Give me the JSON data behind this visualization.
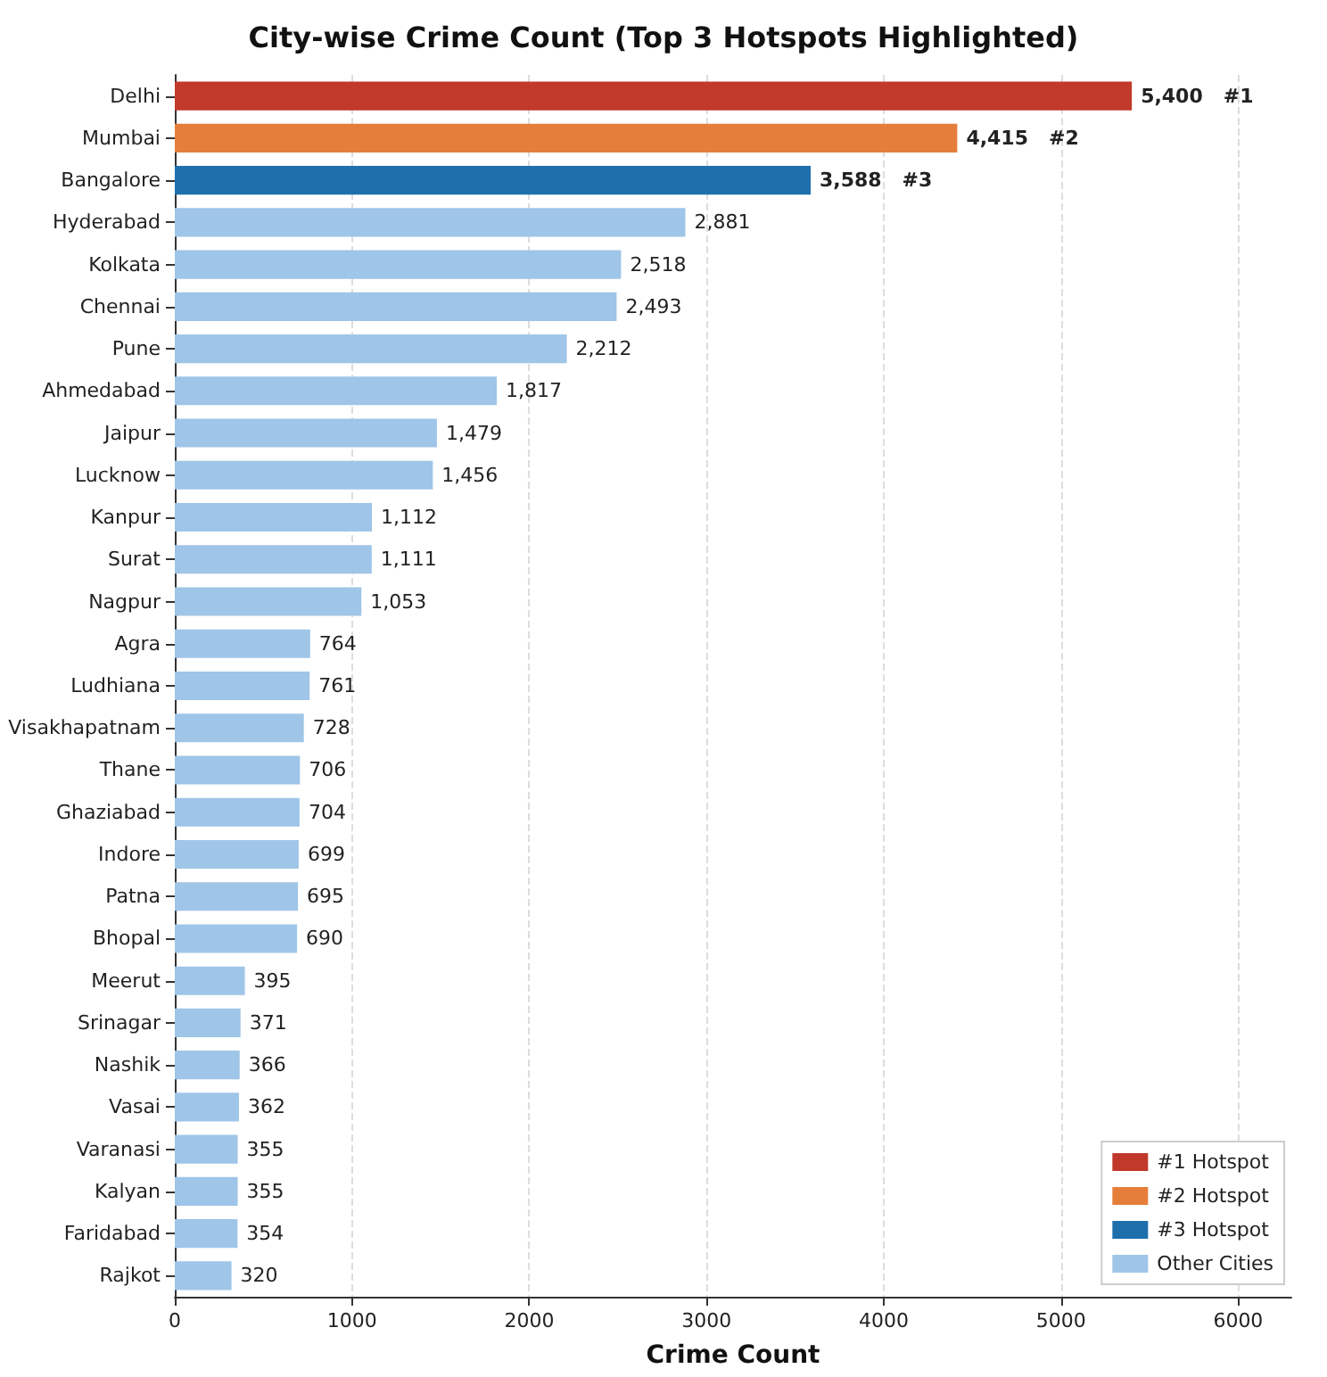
{
  "chart_data": {
    "type": "bar",
    "orientation": "horizontal",
    "stacked": true,
    "title": "City-wise Crime Count (Top 3 Hotspots Highlighted)",
    "xlabel": "Crime Count",
    "categories": [
      "Delhi",
      "Mumbai",
      "Bangalore",
      "Hyderabad",
      "Kolkata",
      "Chennai",
      "Pune",
      "Ahmedabad",
      "Jaipur",
      "Lucknow",
      "Kanpur",
      "Surat",
      "Nagpur",
      "Agra",
      "Ludhiana",
      "Visakhapatnam",
      "Thane",
      "Ghaziabad",
      "Indore",
      "Patna",
      "Bhopal",
      "Meerut",
      "Srinagar",
      "Nashik",
      "Vasai",
      "Varanasi",
      "Kalyan",
      "Faridabad",
      "Rajkot"
    ],
    "series": [
      {
        "name": "#1 Hotspot",
        "color": "#c0392b",
        "values": [
          5400,
          null,
          null,
          null,
          null,
          null,
          null,
          null,
          null,
          null,
          null,
          null,
          null,
          null,
          null,
          null,
          null,
          null,
          null,
          null,
          null,
          null,
          null,
          null,
          null,
          null,
          null,
          null,
          null
        ],
        "value_labels": [
          "5,400   #1",
          null,
          null,
          null,
          null,
          null,
          null,
          null,
          null,
          null,
          null,
          null,
          null,
          null,
          null,
          null,
          null,
          null,
          null,
          null,
          null,
          null,
          null,
          null,
          null,
          null,
          null,
          null,
          null
        ]
      },
      {
        "name": "#2 Hotspot",
        "color": "#e67e3b",
        "values": [
          null,
          4415,
          null,
          null,
          null,
          null,
          null,
          null,
          null,
          null,
          null,
          null,
          null,
          null,
          null,
          null,
          null,
          null,
          null,
          null,
          null,
          null,
          null,
          null,
          null,
          null,
          null,
          null,
          null
        ],
        "value_labels": [
          null,
          "4,415   #2",
          null,
          null,
          null,
          null,
          null,
          null,
          null,
          null,
          null,
          null,
          null,
          null,
          null,
          null,
          null,
          null,
          null,
          null,
          null,
          null,
          null,
          null,
          null,
          null,
          null,
          null,
          null
        ]
      },
      {
        "name": "#3 Hotspot",
        "color": "#1f6fad",
        "values": [
          null,
          null,
          3588,
          null,
          null,
          null,
          null,
          null,
          null,
          null,
          null,
          null,
          null,
          null,
          null,
          null,
          null,
          null,
          null,
          null,
          null,
          null,
          null,
          null,
          null,
          null,
          null,
          null,
          null
        ],
        "value_labels": [
          null,
          null,
          "3,588   #3",
          null,
          null,
          null,
          null,
          null,
          null,
          null,
          null,
          null,
          null,
          null,
          null,
          null,
          null,
          null,
          null,
          null,
          null,
          null,
          null,
          null,
          null,
          null,
          null,
          null,
          null
        ]
      },
      {
        "name": "Other Cities",
        "color": "#9fc5e8",
        "values": [
          null,
          null,
          null,
          2881,
          2518,
          2493,
          2212,
          1817,
          1479,
          1456,
          1112,
          1111,
          1053,
          764,
          761,
          728,
          706,
          704,
          699,
          695,
          690,
          395,
          371,
          366,
          362,
          355,
          355,
          354,
          320
        ],
        "value_labels": [
          null,
          null,
          null,
          "2,881",
          "2,518",
          "2,493",
          "2,212",
          "1,817",
          "1,479",
          "1,456",
          "1,112",
          "1,111",
          "1,053",
          "764",
          "761",
          "728",
          "706",
          "704",
          "699",
          "695",
          "690",
          "395",
          "371",
          "366",
          "362",
          "355",
          "355",
          "354",
          "320"
        ]
      }
    ],
    "xlim": [
      0,
      6300
    ],
    "xticks": [
      0,
      1000,
      2000,
      3000,
      4000,
      5000,
      6000
    ],
    "grid": "x",
    "legend": "bottom right"
  }
}
